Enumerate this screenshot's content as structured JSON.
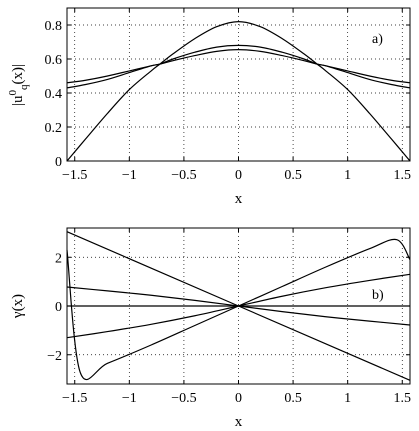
{
  "chart_data": [
    {
      "type": "line",
      "annotation": "a)",
      "xlabel": "x",
      "ylabel": "|u",
      "ylabel_sup": "0",
      "ylabel_sub": "q",
      "ylabel_tail": "(x)|",
      "xlim": [
        -1.5708,
        1.5708
      ],
      "ylim": [
        0,
        0.9
      ],
      "xticks": [
        -1.5,
        -1,
        -0.5,
        0,
        0.5,
        1,
        1.5
      ],
      "xtick_labels": [
        "−1.5",
        "−1",
        "−0.5",
        "0",
        "0.5",
        "1",
        "1.5"
      ],
      "yticks": [
        0,
        0.2,
        0.4,
        0.6,
        0.8
      ],
      "ytick_labels": [
        "0",
        "0.2",
        "0.4",
        "0.6",
        "0.8"
      ],
      "grid": true,
      "series": [
        {
          "x": [
            -1.5708,
            -1.4,
            -1.2,
            -1.0,
            -0.8,
            -0.72,
            -0.6,
            -0.4,
            -0.2,
            0,
            0.2,
            0.4,
            0.6,
            0.72,
            0.8,
            1.0,
            1.2,
            1.4,
            1.5708
          ],
          "y": [
            0.0,
            0.13,
            0.28,
            0.42,
            0.53,
            0.57,
            0.63,
            0.72,
            0.79,
            0.82,
            0.79,
            0.72,
            0.63,
            0.57,
            0.53,
            0.42,
            0.28,
            0.13,
            0.0
          ]
        },
        {
          "x": [
            -1.5708,
            -1.4,
            -1.2,
            -1.0,
            -0.8,
            -0.72,
            -0.6,
            -0.4,
            -0.2,
            0,
            0.2,
            0.4,
            0.6,
            0.72,
            0.8,
            1.0,
            1.2,
            1.4,
            1.5708
          ],
          "y": [
            0.43,
            0.45,
            0.48,
            0.52,
            0.56,
            0.57,
            0.6,
            0.64,
            0.67,
            0.68,
            0.67,
            0.64,
            0.6,
            0.57,
            0.56,
            0.52,
            0.48,
            0.45,
            0.43
          ]
        },
        {
          "x": [
            -1.5708,
            -1.4,
            -1.2,
            -1.0,
            -0.8,
            -0.72,
            -0.6,
            -0.4,
            -0.2,
            0,
            0.2,
            0.4,
            0.6,
            0.72,
            0.8,
            1.0,
            1.2,
            1.4,
            1.5708
          ],
          "y": [
            0.46,
            0.475,
            0.5,
            0.53,
            0.56,
            0.57,
            0.59,
            0.62,
            0.645,
            0.655,
            0.645,
            0.62,
            0.59,
            0.57,
            0.56,
            0.53,
            0.5,
            0.475,
            0.46
          ]
        }
      ]
    },
    {
      "type": "line",
      "annotation": "b)",
      "xlabel": "x",
      "ylabel": "γ(x)",
      "xlim": [
        -1.5708,
        1.5708
      ],
      "ylim": [
        -3.2,
        3.2
      ],
      "xticks": [
        -1.5,
        -1,
        -0.5,
        0,
        0.5,
        1,
        1.5
      ],
      "xtick_labels": [
        "−1.5",
        "−1",
        "−0.5",
        "0",
        "0.5",
        "1",
        "1.5"
      ],
      "yticks": [
        -2,
        0,
        2
      ],
      "ytick_labels": [
        "−2",
        "0",
        "2"
      ],
      "grid": true,
      "series": [
        {
          "x": [
            -1.5708,
            1.5708
          ],
          "y": [
            3.05,
            -3.05
          ]
        },
        {
          "x": [
            -1.5708,
            -1.45,
            -1.2,
            -0.8,
            -0.4,
            0,
            0.4,
            0.8,
            1.2,
            1.45,
            1.5708
          ],
          "y": [
            2.3,
            -2.72,
            -2.35,
            -1.6,
            -0.8,
            0,
            0.8,
            1.6,
            2.35,
            2.72,
            1.9
          ]
        },
        {
          "x": [
            -1.5708,
            -1.2,
            -0.8,
            -0.4,
            0,
            0.4,
            0.8,
            1.2,
            1.5708
          ],
          "y": [
            -1.3,
            -1.05,
            -0.75,
            -0.4,
            0,
            0.4,
            0.75,
            1.05,
            1.3
          ]
        },
        {
          "x": [
            -1.5708,
            -1.2,
            -0.8,
            -0.4,
            0,
            0.4,
            0.8,
            1.2,
            1.5708
          ],
          "y": [
            0.78,
            0.62,
            0.44,
            0.23,
            0,
            -0.23,
            -0.44,
            -0.62,
            -0.78
          ]
        },
        {
          "x": [
            -1.5708,
            1.5708
          ],
          "y": [
            0,
            0
          ]
        }
      ]
    }
  ]
}
